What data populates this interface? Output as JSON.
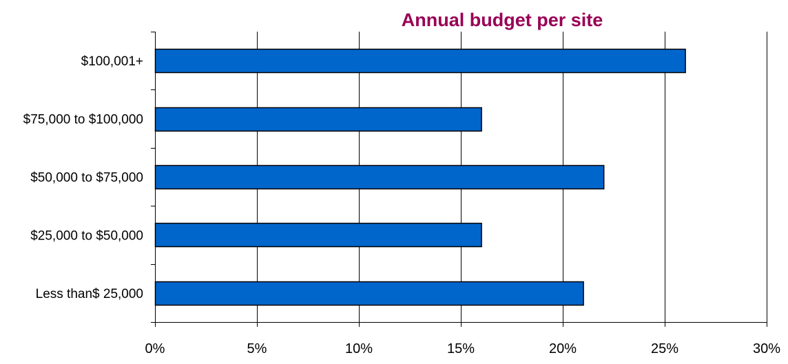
{
  "chart_data": {
    "type": "bar",
    "orientation": "horizontal",
    "title": "Annual budget per site",
    "title_color": "#990055",
    "bar_color": "#0066CC",
    "bar_edge_color": "#000000",
    "categories": [
      "$100,001+",
      "$75,000 to $100,000",
      "$50,000 to $75,000",
      "$25,000 to $50,000",
      "Less than$ 25,000"
    ],
    "values": [
      26,
      16,
      22,
      16,
      21
    ],
    "value_unit": "%",
    "xlim": [
      0,
      30
    ],
    "x_ticks": [
      0,
      5,
      10,
      15,
      20,
      25,
      30
    ],
    "x_tick_labels": [
      "0%",
      "5%",
      "10%",
      "15%",
      "20%",
      "25%",
      "30%"
    ],
    "xlabel": "",
    "ylabel": "",
    "grid": "vertical",
    "legend": "none"
  }
}
